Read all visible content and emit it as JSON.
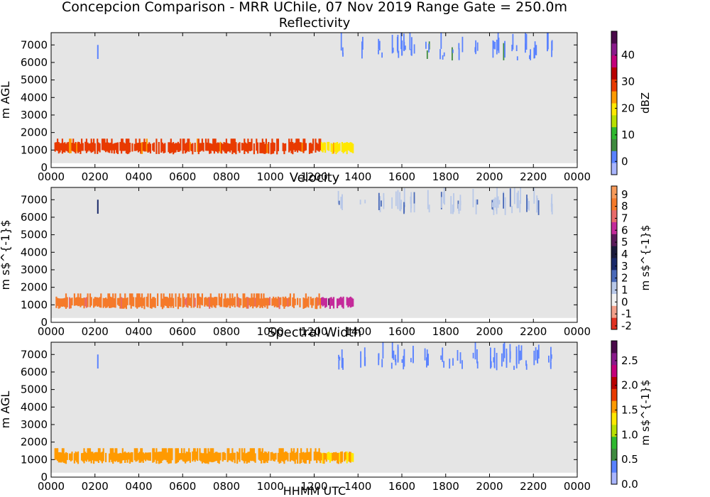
{
  "figure": {
    "suptitle": "Concepcion Comparison - MRR UChile, 07 Nov 2019 Range Gate = 250.0m",
    "xlabel": "HHMM UTC"
  },
  "chart_data": [
    {
      "type": "heatmap",
      "title": "Reflectivity",
      "xlabel": "",
      "ylabel": "m AGL",
      "colorbar_label": "dBZ",
      "colorbar_ticks": [
        "0",
        "10",
        "20",
        "30",
        "40"
      ],
      "colorbar_range": [
        -5,
        49
      ],
      "cmap": [
        "#a9b5ff",
        "#5a82ff",
        "#3f8a3f",
        "#2fb82f",
        "#b8e000",
        "#ffe800",
        "#ff9a00",
        "#e83a00",
        "#b80000",
        "#c4007a",
        "#8a1a8a",
        "#4a0a4a"
      ],
      "xticks": [
        "0000",
        "0200",
        "0400",
        "0600",
        "0800",
        "1000",
        "1200",
        "1400",
        "1600",
        "1800",
        "2000",
        "2200",
        "0000"
      ],
      "xlim_hours": [
        0,
        24
      ],
      "yticks": [
        0,
        1000,
        2000,
        3000,
        4000,
        5000,
        6000,
        7000
      ],
      "ylim": [
        0,
        7700
      ],
      "background": "#e5e5e5",
      "low_band": {
        "start_hour": 0.15,
        "end_hour": 13.75,
        "bottom": 750,
        "top": 1650,
        "early_value": 28,
        "late_value": 21
      },
      "upper_echoes": {
        "start_hour": 13.0,
        "end_hour": 22.6,
        "bottom": 5600,
        "top": 7700,
        "value": 3
      },
      "isolated_echo": {
        "hour": 2.1,
        "bottom": 6200,
        "top": 7000,
        "value": 3
      }
    },
    {
      "type": "heatmap",
      "title": "Velocity",
      "xlabel": "",
      "ylabel": "m s$^{-1}$",
      "colorbar_label": "m s$^{-1}$",
      "colorbar_ticks": [
        "-2",
        "-1",
        "0",
        "1",
        "2",
        "3",
        "4",
        "5",
        "6",
        "7",
        "8",
        "9"
      ],
      "colorbar_range": [
        -2.3,
        9.7
      ],
      "cmap": [
        "#e03020",
        "#f3a08a",
        "#f3f3f3",
        "#b8c8e8",
        "#4a6ab8",
        "#1a2a6a",
        "#1a1a3a",
        "#5a1a5a",
        "#c42a9a",
        "#e86a6a",
        "#f57a2a",
        "#f79a5a"
      ],
      "xticks": [
        "0000",
        "0200",
        "0400",
        "0600",
        "0800",
        "1000",
        "1200",
        "1400",
        "1600",
        "1800",
        "2000",
        "2200",
        "0000"
      ],
      "xlim_hours": [
        0,
        24
      ],
      "yticks": [
        0,
        1000,
        2000,
        3000,
        4000,
        5000,
        6000,
        7000
      ],
      "ylim": [
        0,
        7700
      ],
      "background": "#e5e5e5",
      "low_band": {
        "start_hour": 0.15,
        "end_hour": 13.75,
        "bottom": 750,
        "top": 1650,
        "early_value": 8,
        "late_value": 6
      },
      "upper_echoes": {
        "start_hour": 13.0,
        "end_hour": 22.6,
        "bottom": 5600,
        "top": 7700,
        "value": 1.5
      },
      "isolated_echo": {
        "hour": 2.1,
        "bottom": 6200,
        "top": 7000,
        "value": 3
      }
    },
    {
      "type": "heatmap",
      "title": "Spectral Width",
      "xlabel": "HHMM UTC",
      "ylabel": "m AGL",
      "colorbar_label": "m s$^{-1}$",
      "colorbar_ticks": [
        "0.0",
        "0.5",
        "1.0",
        "1.5",
        "2.0",
        "2.5"
      ],
      "colorbar_range": [
        0,
        2.9
      ],
      "cmap": [
        "#a9b5ff",
        "#5a82ff",
        "#3f8a3f",
        "#2fb82f",
        "#b8e000",
        "#ffe800",
        "#ff9a00",
        "#e83a00",
        "#b80000",
        "#c4007a",
        "#8a1a8a",
        "#4a0a4a"
      ],
      "xticks": [
        "0000",
        "0200",
        "0400",
        "0600",
        "0800",
        "1000",
        "1200",
        "1400",
        "1600",
        "1800",
        "2000",
        "2200",
        "0000"
      ],
      "xlim_hours": [
        0,
        24
      ],
      "yticks": [
        0,
        1000,
        2000,
        3000,
        4000,
        5000,
        6000,
        7000
      ],
      "ylim": [
        0,
        7700
      ],
      "background": "#e5e5e5",
      "low_band": {
        "start_hour": 0.15,
        "end_hour": 13.75,
        "bottom": 750,
        "top": 1650,
        "early_value": 1.6,
        "late_value": 1.45
      },
      "upper_echoes": {
        "start_hour": 13.0,
        "end_hour": 22.6,
        "bottom": 5600,
        "top": 7700,
        "value": 0.4
      },
      "isolated_echo": {
        "hour": 2.1,
        "bottom": 6200,
        "top": 7000,
        "value": 0.4
      }
    }
  ]
}
